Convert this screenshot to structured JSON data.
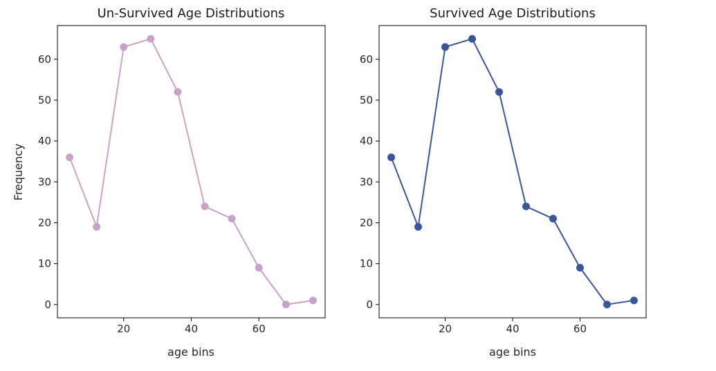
{
  "chart_data": [
    {
      "type": "line",
      "title": "Un-Survived Age Distributions",
      "xlabel": "age bins",
      "ylabel": "Frequency",
      "x": [
        4,
        12,
        20,
        28,
        36,
        44,
        52,
        60,
        68,
        76
      ],
      "series": [
        {
          "values": [
            36,
            19,
            63,
            65,
            52,
            24,
            21,
            9,
            0,
            1
          ],
          "color": "#c8a2c8"
        }
      ],
      "xticks": [
        20,
        40,
        60
      ],
      "yticks": [
        0,
        10,
        20,
        30,
        40,
        50,
        60
      ],
      "xlim": [
        0.4,
        79.6
      ],
      "ylim": [
        -3.25,
        68.25
      ],
      "grid": false,
      "legend": "none"
    },
    {
      "type": "line",
      "title": "Survived Age Distributions",
      "xlabel": "age bins",
      "ylabel": "",
      "x": [
        4,
        12,
        20,
        28,
        36,
        44,
        52,
        60,
        68,
        76
      ],
      "series": [
        {
          "values": [
            36,
            19,
            63,
            65,
            52,
            24,
            21,
            9,
            0,
            1
          ],
          "color": "#3a5598"
        }
      ],
      "xticks": [
        20,
        40,
        60
      ],
      "yticks": [
        0,
        10,
        20,
        30,
        40,
        50,
        60
      ],
      "xlim": [
        0.4,
        79.6
      ],
      "ylim": [
        -3.25,
        68.25
      ],
      "grid": false,
      "legend": "none"
    }
  ]
}
